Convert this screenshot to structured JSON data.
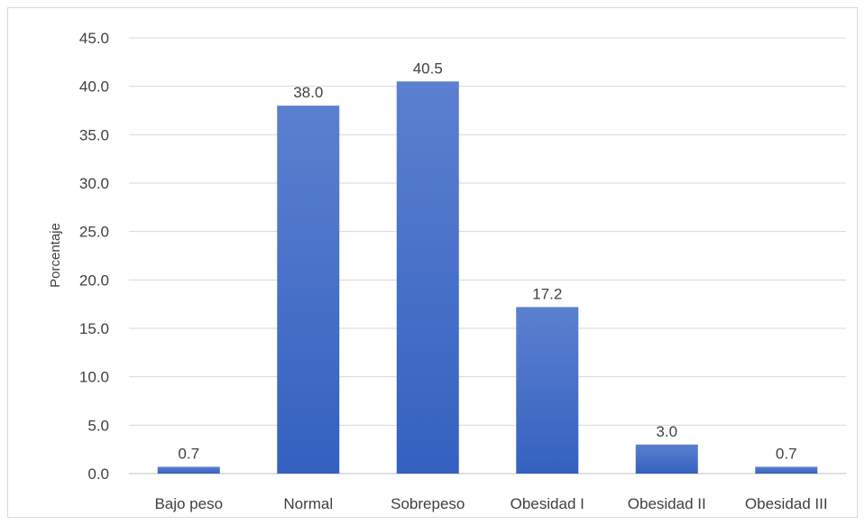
{
  "chart_data": {
    "type": "bar",
    "categories": [
      "Bajo peso",
      "Normal",
      "Sobrepeso",
      "Obesidad I",
      "Obesidad II",
      "Obesidad III"
    ],
    "values": [
      0.7,
      38.0,
      40.5,
      17.2,
      3.0,
      0.7
    ],
    "data_labels": [
      "0.7",
      "38.0",
      "40.5",
      "17.2",
      "3.0",
      "0.7"
    ],
    "title": "",
    "xlabel": "",
    "ylabel": "Porcentaje",
    "ylim": [
      0,
      45
    ],
    "yticks": [
      "0.0",
      "5.0",
      "10.0",
      "15.0",
      "20.0",
      "25.0",
      "30.0",
      "35.0",
      "40.0",
      "45.0"
    ],
    "grid": true,
    "legend": "none",
    "bar_color_top": "#5b80cf",
    "bar_color_bottom": "#3461c0"
  }
}
